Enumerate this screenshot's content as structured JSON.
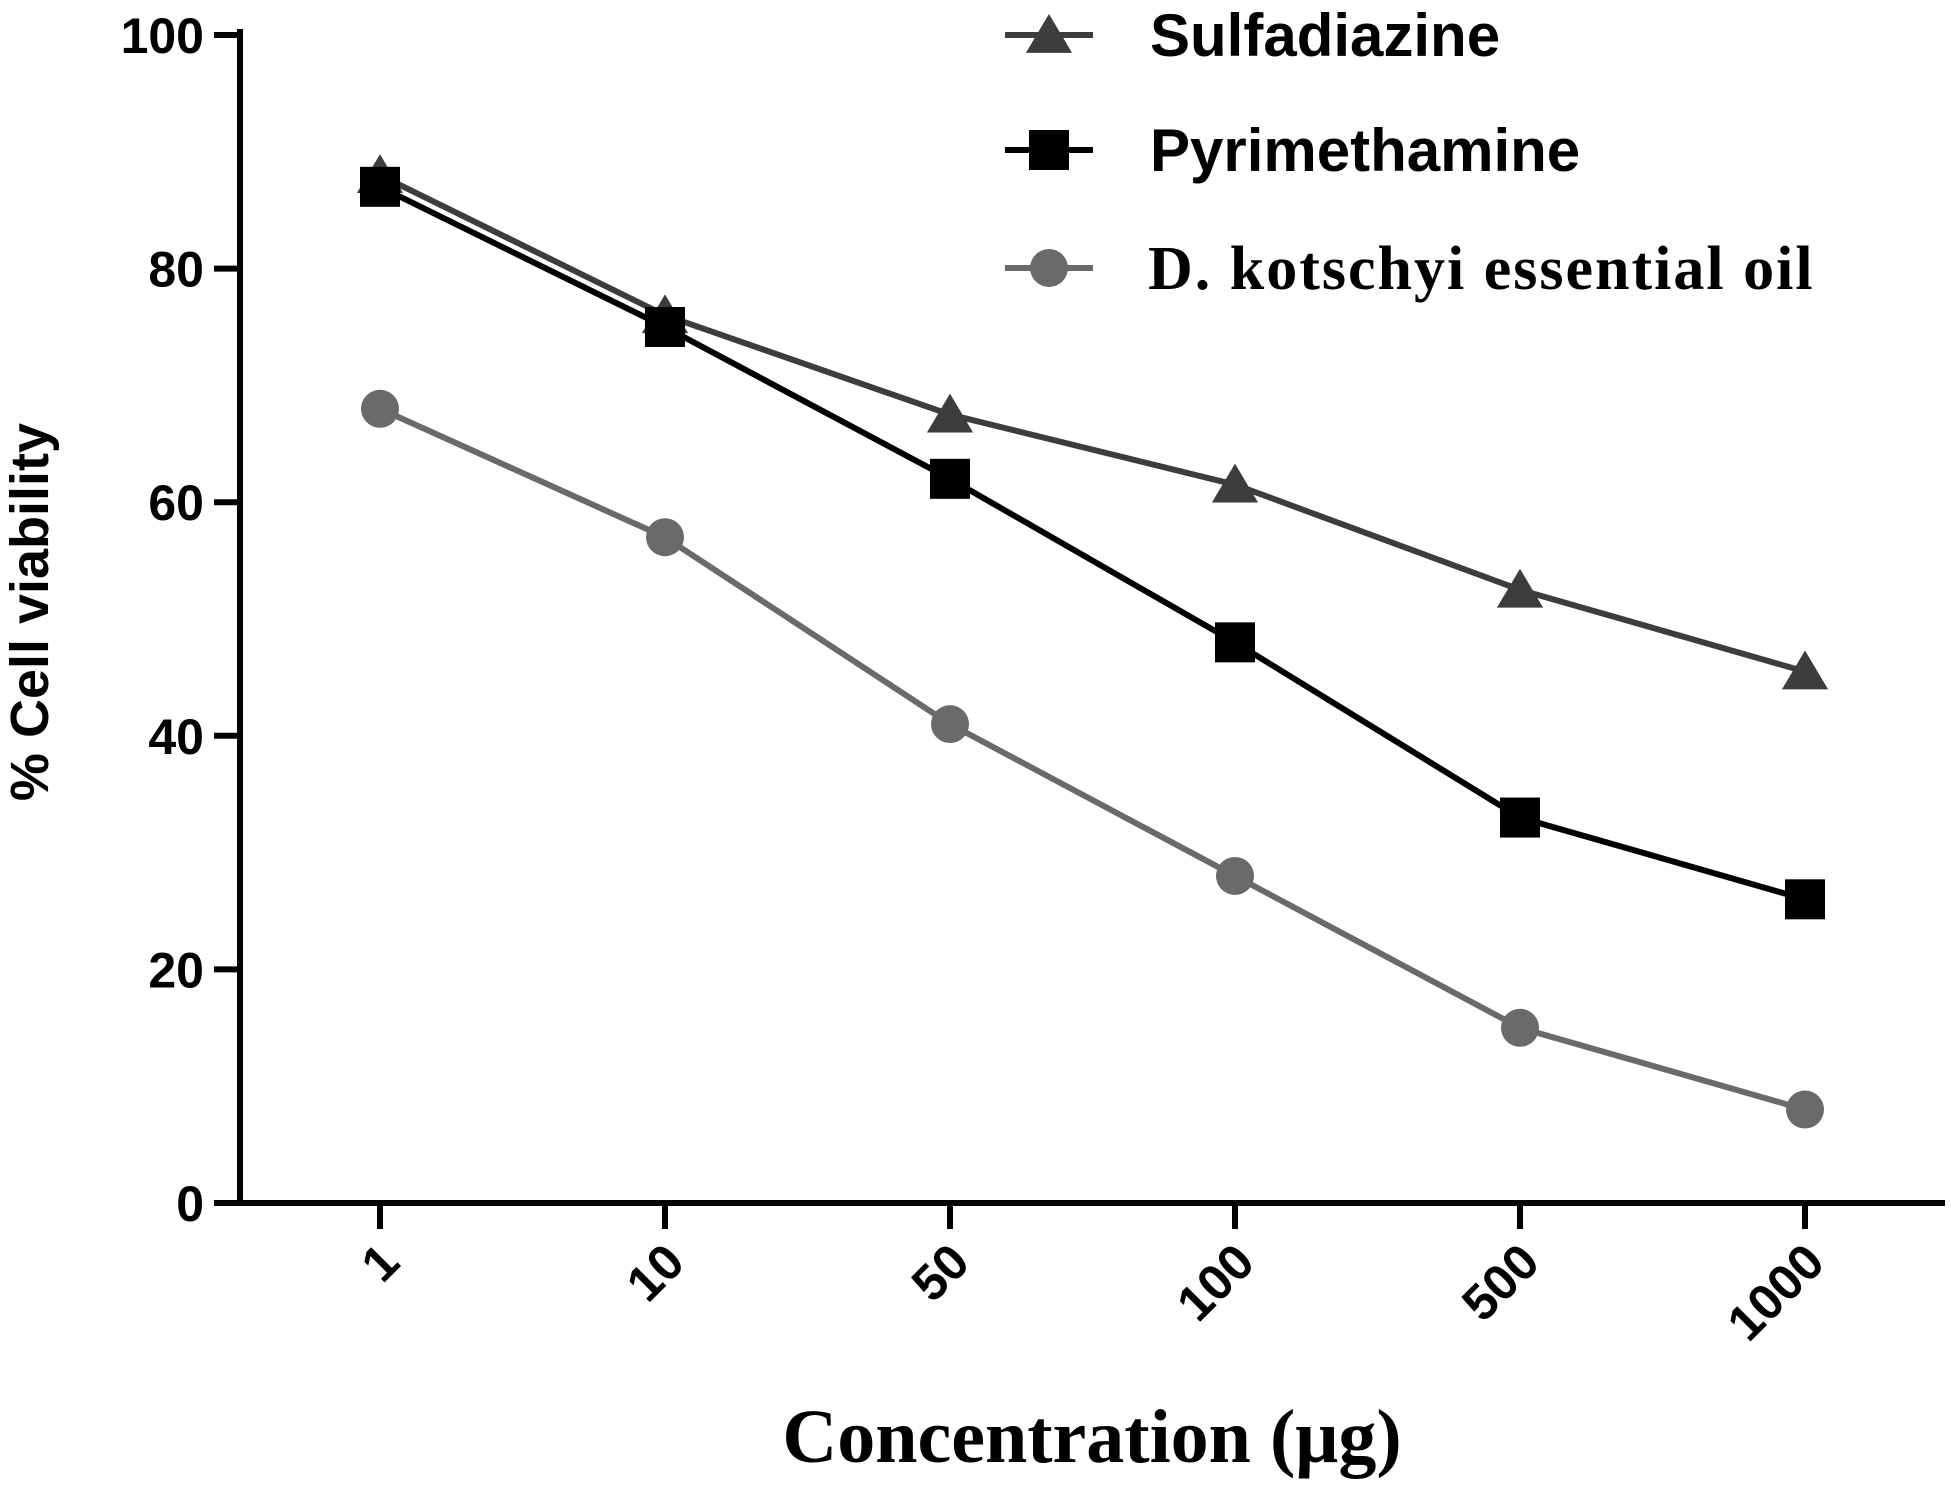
{
  "chart_data": {
    "type": "line",
    "title": "",
    "xlabel": "Concentration (μg)",
    "ylabel": "% Cell viability",
    "categories": [
      "1",
      "10",
      "50",
      "100",
      "500",
      "1000"
    ],
    "ylim": [
      0,
      100
    ],
    "yticks": [
      0,
      20,
      40,
      60,
      80,
      100
    ],
    "grid": false,
    "legend_position": "top-right",
    "series": [
      {
        "name": "Sulfadiazine",
        "marker": "triangle",
        "color": "#3d3d3d",
        "font": "sans",
        "values": [
          88,
          76,
          67.5,
          61.5,
          52.5,
          45.5
        ]
      },
      {
        "name": "Pyrimethamine",
        "marker": "square",
        "color": "#000000",
        "font": "sans",
        "values": [
          87,
          75,
          62,
          48,
          33,
          26
        ]
      },
      {
        "name": "D. kotschyi essential oil",
        "marker": "circle",
        "color": "#6a6a6a",
        "font": "serif",
        "values": [
          68,
          57,
          41,
          28,
          15,
          8
        ]
      }
    ]
  }
}
